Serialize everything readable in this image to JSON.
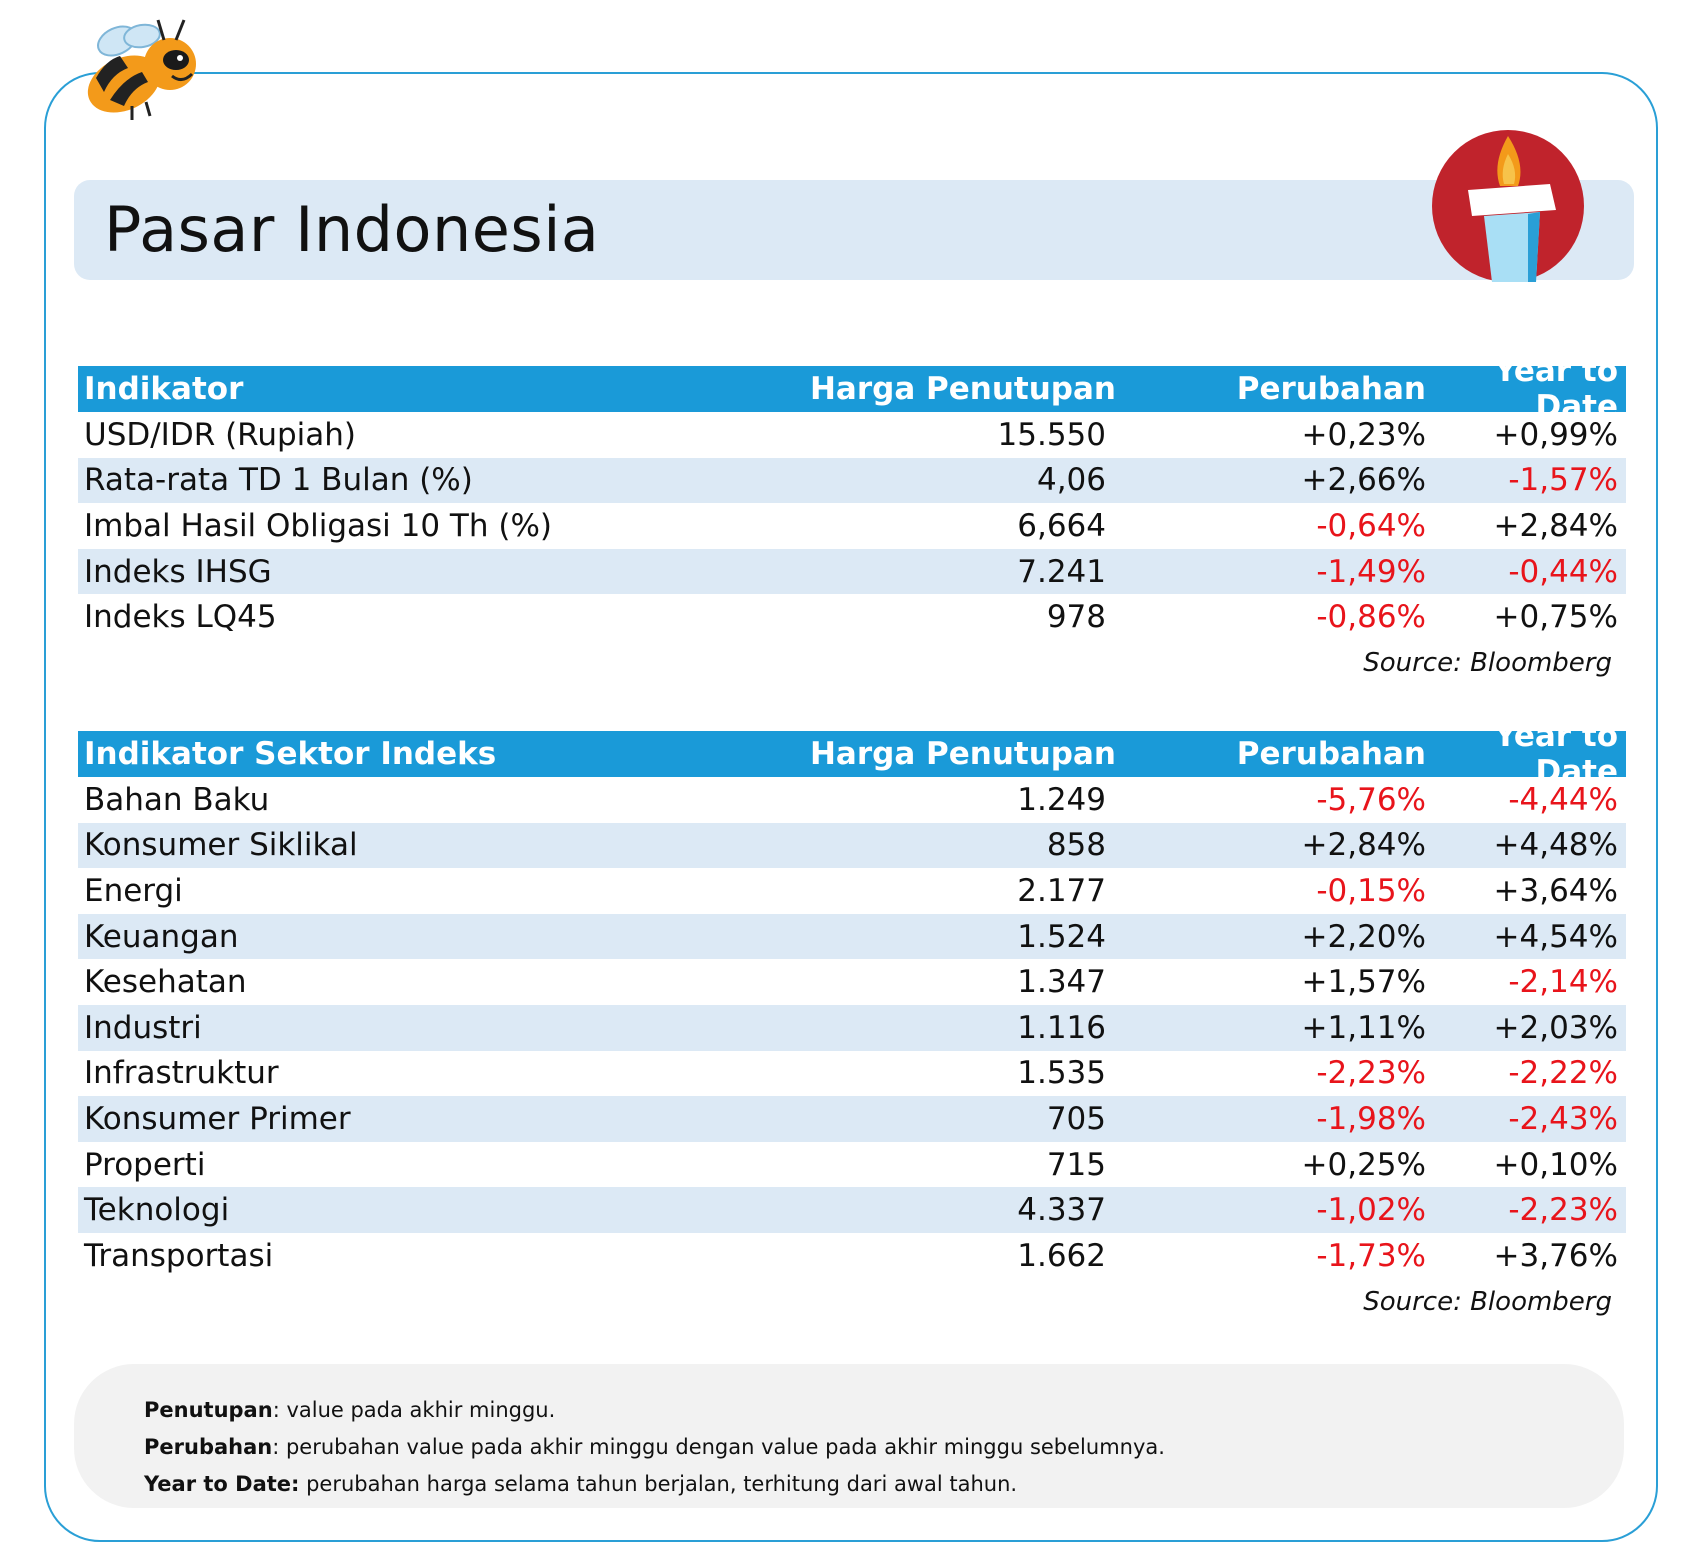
{
  "title": "Pasar Indonesia",
  "colors": {
    "header": "#1a9ad8",
    "alt_row": "#dce9f5",
    "negative": "#e8141b",
    "frame": "#2a9fd6"
  },
  "icons": {
    "mascot": "bee-mascot-icon",
    "monument": "monas-torch-icon"
  },
  "table1": {
    "headers": [
      "Indikator",
      "Harga Penutupan",
      "Perubahan",
      "Year to Date"
    ],
    "rows": [
      [
        "USD/IDR (Rupiah)",
        "15.550",
        "+0,23%",
        "+0,99%"
      ],
      [
        "Rata-rata TD 1 Bulan (%)",
        "4,06",
        "+2,66%",
        "-1,57%"
      ],
      [
        "Imbal Hasil Obligasi 10 Th (%)",
        "6,664",
        "-0,64%",
        "+2,84%"
      ],
      [
        "Indeks IHSG",
        "7.241",
        "-1,49%",
        "-0,44%"
      ],
      [
        "Indeks LQ45",
        "978",
        "-0,86%",
        "+0,75%"
      ]
    ],
    "source": "Source: Bloomberg"
  },
  "table2": {
    "headers": [
      "Indikator Sektor Indeks",
      "Harga Penutupan",
      "Perubahan",
      "Year to Date"
    ],
    "rows": [
      [
        "Bahan Baku",
        "1.249",
        "-5,76%",
        "-4,44%"
      ],
      [
        "Konsumer Siklikal",
        "858",
        "+2,84%",
        "+4,48%"
      ],
      [
        "Energi",
        "2.177",
        "-0,15%",
        "+3,64%"
      ],
      [
        "Keuangan",
        "1.524",
        "+2,20%",
        "+4,54%"
      ],
      [
        "Kesehatan",
        "1.347",
        "+1,57%",
        "-2,14%"
      ],
      [
        "Industri",
        "1.116",
        "+1,11%",
        "+2,03%"
      ],
      [
        "Infrastruktur",
        "1.535",
        "-2,23%",
        "-2,22%"
      ],
      [
        "Konsumer Primer",
        "705",
        "-1,98%",
        "-2,43%"
      ],
      [
        "Properti",
        "715",
        "+0,25%",
        "+0,10%"
      ],
      [
        "Teknologi",
        "4.337",
        "-1,02%",
        "-2,23%"
      ],
      [
        "Transportasi",
        "1.662",
        "-1,73%",
        "+3,76%"
      ]
    ],
    "source": "Source: Bloomberg"
  },
  "notes": [
    {
      "term": "Penutupan",
      "text": ": value pada akhir minggu."
    },
    {
      "term": "Perubahan",
      "text": ": perubahan value pada akhir minggu dengan value pada akhir minggu sebelumnya."
    },
    {
      "term": "Year to Date:",
      "text": " perubahan harga selama tahun berjalan, terhitung dari awal tahun."
    }
  ]
}
